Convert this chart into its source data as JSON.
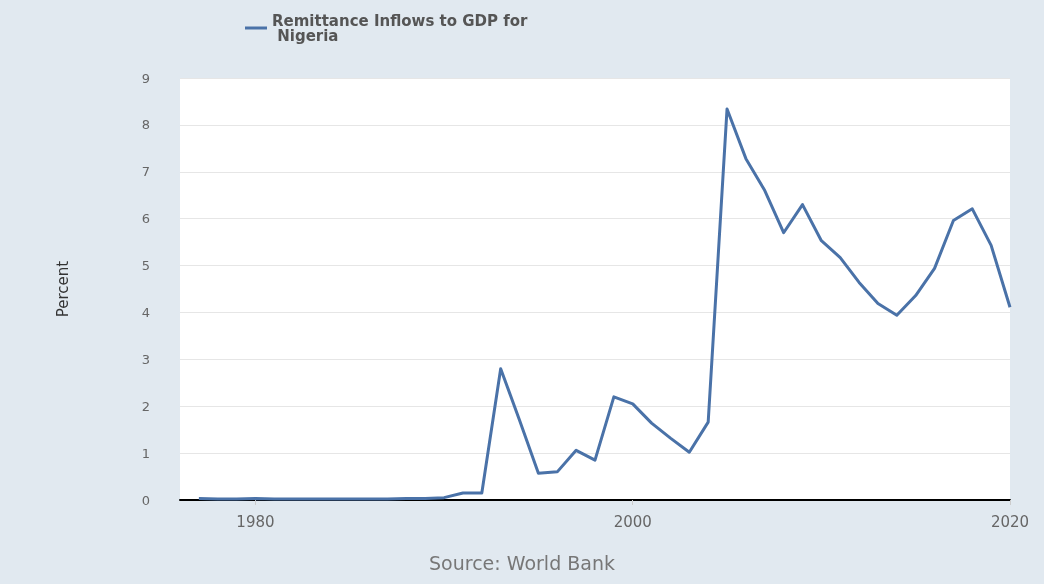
{
  "chart_data": {
    "type": "line",
    "ylabel": "Percent",
    "annotations": [
      "Source: World Bank"
    ],
    "x": [
      1977,
      1978,
      1979,
      1980,
      1981,
      1982,
      1983,
      1984,
      1985,
      1986,
      1987,
      1988,
      1989,
      1990,
      1991,
      1992,
      1993,
      1994,
      1995,
      1996,
      1997,
      1998,
      1999,
      2000,
      2001,
      2002,
      2003,
      2004,
      2005,
      2006,
      2007,
      2008,
      2009,
      2010,
      2011,
      2012,
      2013,
      2014,
      2015,
      2016,
      2017,
      2018,
      2019,
      2020
    ],
    "series": [
      {
        "name": "Remittance Inflows to GDP for Nigeria",
        "color": "#4a72a8",
        "values": [
          0.03,
          0.02,
          0.02,
          0.03,
          0.02,
          0.02,
          0.02,
          0.02,
          0.02,
          0.02,
          0.02,
          0.03,
          0.03,
          0.05,
          0.15,
          0.15,
          2.8,
          1.7,
          0.57,
          0.6,
          1.06,
          0.85,
          2.2,
          2.05,
          1.64,
          1.32,
          1.02,
          1.66,
          8.34,
          7.28,
          6.6,
          5.7,
          6.3,
          5.53,
          5.17,
          4.64,
          4.19,
          3.94,
          4.36,
          4.94,
          5.96,
          6.21,
          5.43,
          4.11
        ]
      }
    ],
    "xlim": [
      1976,
      2020
    ],
    "xticks": [
      1980,
      2000,
      2020
    ],
    "ylim": [
      0,
      9
    ],
    "yticks": [
      0,
      1,
      2,
      3,
      4,
      5,
      6,
      7,
      8,
      9
    ],
    "grid": "y",
    "legend": "top left",
    "marker": "none",
    "line_style": "solid"
  }
}
